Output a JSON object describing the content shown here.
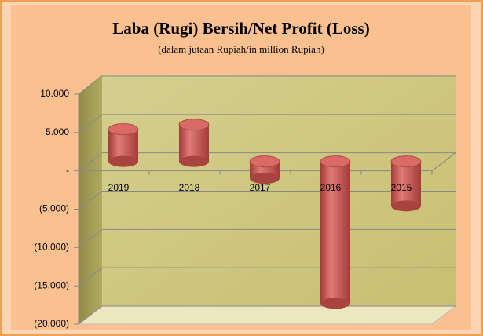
{
  "chart_data": {
    "type": "bar",
    "title": "Laba (Rugi) Bersih/Net Profit (Loss)",
    "subtitle": "(dalam jutaan Rupiah/in million Rupiah)",
    "categories": [
      "2019",
      "2018",
      "2017",
      "2016",
      "2015"
    ],
    "values": [
      4200,
      4800,
      -2200,
      -18500,
      -5800
    ],
    "color": "#c0504d",
    "ylim": [
      -20000,
      10000
    ],
    "yticks": [
      {
        "value": 10000,
        "label": "10.000"
      },
      {
        "value": 5000,
        "label": "5.000"
      },
      {
        "value": 0,
        "label": "-"
      },
      {
        "value": -5000,
        "label": "(5.000)"
      },
      {
        "value": -10000,
        "label": "(10.000)"
      },
      {
        "value": -15000,
        "label": "(15.000)"
      },
      {
        "value": -20000,
        "label": "(20.000)"
      }
    ],
    "grid": true
  }
}
